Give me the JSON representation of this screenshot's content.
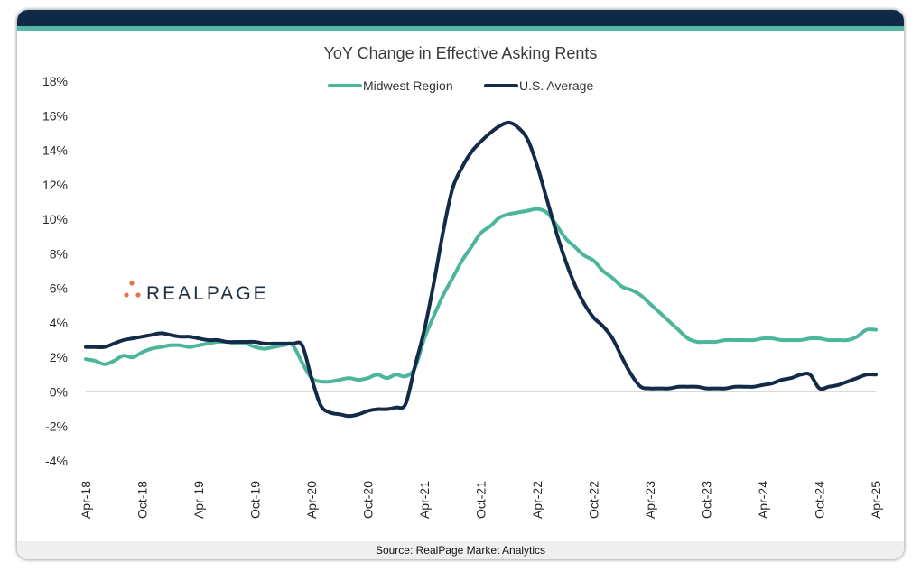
{
  "chart_data": {
    "type": "line",
    "title": "YoY Change in Effective Asking Rents",
    "xlabel": "",
    "ylabel": "",
    "ylim": [
      -4,
      18
    ],
    "y_ticks": [
      "18%",
      "16%",
      "14%",
      "12%",
      "10%",
      "8%",
      "6%",
      "4%",
      "2%",
      "0%",
      "-2%",
      "-4%"
    ],
    "y_tick_values": [
      18,
      16,
      14,
      12,
      10,
      8,
      6,
      4,
      2,
      0,
      -2,
      -4
    ],
    "x_tick_labels": [
      "Apr-18",
      "Oct-18",
      "Apr-19",
      "Oct-19",
      "Apr-20",
      "Oct-20",
      "Apr-21",
      "Oct-21",
      "Apr-22",
      "Oct-22",
      "Apr-23",
      "Oct-23",
      "Apr-24",
      "Oct-24",
      "Apr-25"
    ],
    "x_tick_months": [
      0,
      6,
      12,
      18,
      24,
      30,
      36,
      42,
      48,
      54,
      60,
      66,
      72,
      78,
      84
    ],
    "legend_position": "top-center",
    "series": [
      {
        "name": "Midwest Region",
        "color": "#4db59b",
        "x_months": [
          0,
          1,
          2,
          3,
          4,
          5,
          6,
          7,
          8,
          9,
          10,
          11,
          12,
          13,
          14,
          15,
          16,
          17,
          18,
          19,
          20,
          21,
          22,
          23,
          24,
          25,
          26,
          27,
          28,
          29,
          30,
          31,
          32,
          33,
          34,
          35,
          36,
          37,
          38,
          39,
          40,
          41,
          42,
          43,
          44,
          45,
          46,
          47,
          48,
          49,
          50,
          51,
          52,
          53,
          54,
          55,
          56,
          57,
          58,
          59,
          60,
          61,
          62,
          63,
          64,
          65,
          66,
          67,
          68,
          69,
          70,
          71,
          72,
          73,
          74,
          75,
          76,
          77,
          78,
          79,
          80,
          81,
          82,
          83,
          84
        ],
        "values": [
          1.9,
          1.8,
          1.6,
          1.8,
          2.1,
          2.0,
          2.3,
          2.5,
          2.6,
          2.7,
          2.7,
          2.6,
          2.7,
          2.8,
          2.9,
          2.9,
          2.8,
          2.8,
          2.6,
          2.5,
          2.6,
          2.7,
          2.7,
          1.7,
          0.8,
          0.6,
          0.6,
          0.7,
          0.8,
          0.7,
          0.8,
          1.0,
          0.8,
          1.0,
          0.9,
          1.4,
          3.1,
          4.4,
          5.6,
          6.6,
          7.6,
          8.4,
          9.2,
          9.6,
          10.1,
          10.3,
          10.4,
          10.5,
          10.6,
          10.4,
          9.7,
          8.9,
          8.4,
          7.9,
          7.6,
          7.0,
          6.6,
          6.1,
          5.9,
          5.6,
          5.1,
          4.6,
          4.1,
          3.6,
          3.1,
          2.9,
          2.9,
          2.9,
          3.0,
          3.0,
          3.0,
          3.0,
          3.1,
          3.1,
          3.0,
          3.0,
          3.0,
          3.1,
          3.1,
          3.0,
          3.0,
          3.0,
          3.2,
          3.6,
          3.6
        ]
      },
      {
        "name": "U.S. Average",
        "color": "#132a49",
        "x_months": [
          0,
          1,
          2,
          3,
          4,
          5,
          6,
          7,
          8,
          9,
          10,
          11,
          12,
          13,
          14,
          15,
          16,
          17,
          18,
          19,
          20,
          21,
          22,
          23,
          24,
          25,
          26,
          27,
          28,
          29,
          30,
          31,
          32,
          33,
          34,
          35,
          36,
          37,
          38,
          39,
          40,
          41,
          42,
          43,
          44,
          45,
          46,
          47,
          48,
          49,
          50,
          51,
          52,
          53,
          54,
          55,
          56,
          57,
          58,
          59,
          60,
          61,
          62,
          63,
          64,
          65,
          66,
          67,
          68,
          69,
          70,
          71,
          72,
          73,
          74,
          75,
          76,
          77,
          78,
          79,
          80,
          81,
          82,
          83,
          84
        ],
        "values": [
          2.6,
          2.6,
          2.6,
          2.8,
          3.0,
          3.1,
          3.2,
          3.3,
          3.4,
          3.3,
          3.2,
          3.2,
          3.1,
          3.0,
          3.0,
          2.9,
          2.9,
          2.9,
          2.9,
          2.8,
          2.8,
          2.8,
          2.8,
          2.7,
          0.8,
          -0.8,
          -1.2,
          -1.3,
          -1.4,
          -1.3,
          -1.1,
          -1.0,
          -1.0,
          -0.9,
          -0.7,
          1.5,
          3.6,
          6.3,
          9.3,
          11.8,
          13.0,
          13.9,
          14.5,
          15.0,
          15.4,
          15.6,
          15.3,
          14.6,
          13.1,
          11.2,
          9.3,
          7.6,
          6.2,
          5.1,
          4.3,
          3.8,
          3.1,
          2.0,
          1.0,
          0.3,
          0.2,
          0.2,
          0.2,
          0.3,
          0.3,
          0.3,
          0.2,
          0.2,
          0.2,
          0.3,
          0.3,
          0.3,
          0.4,
          0.5,
          0.7,
          0.8,
          1.0,
          1.0,
          0.2,
          0.3,
          0.4,
          0.6,
          0.8,
          1.0,
          1.0
        ]
      }
    ]
  },
  "logo": {
    "text": "REALPAGE",
    "dot_color": "#e8704f"
  },
  "footer": {
    "source": "Source: RealPage Market Analytics"
  }
}
